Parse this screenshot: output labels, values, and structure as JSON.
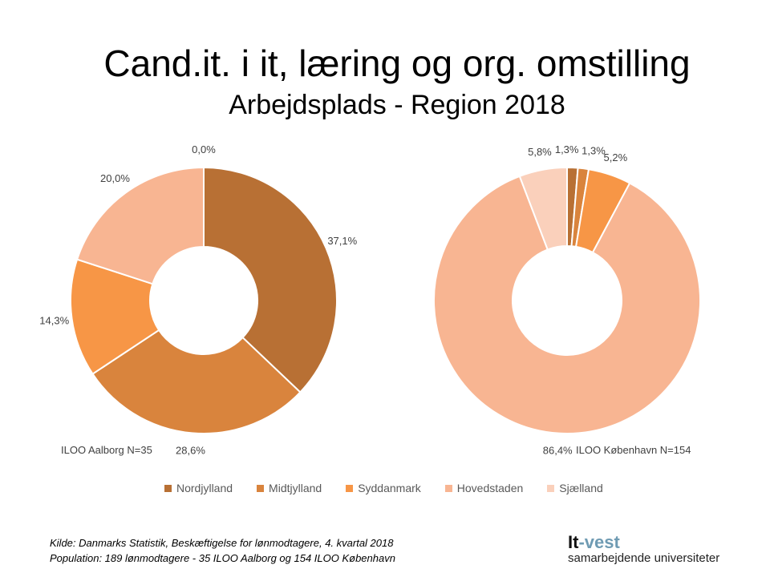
{
  "header": {
    "title": "Cand.it. i it, læring og org. omstilling",
    "subtitle": "Arbejdsplads - Region 2018"
  },
  "chart_data": [
    {
      "type": "pie",
      "donut": true,
      "name": "ILOO Aalborg N=35",
      "categories": [
        "Nordjylland",
        "Midtjylland",
        "Syddanmark",
        "Hovedstaden",
        "Sjælland"
      ],
      "values": [
        37.1,
        28.6,
        14.3,
        20.0,
        0.0
      ],
      "labels": [
        "37,1%",
        "28,6%",
        "14,3%",
        "20,0%",
        "0,0%"
      ]
    },
    {
      "type": "pie",
      "donut": true,
      "name": "ILOO København N=154",
      "categories": [
        "Nordjylland",
        "Midtjylland",
        "Syddanmark",
        "Hovedstaden",
        "Sjælland"
      ],
      "values": [
        1.3,
        1.3,
        5.2,
        86.4,
        5.8
      ],
      "labels": [
        "1,3%",
        "1,3%",
        "5,2%",
        "86,4%",
        "5,8%"
      ]
    }
  ],
  "legend": {
    "placement": "bottom",
    "items": [
      {
        "label": "Nordjylland",
        "color": "#B87034"
      },
      {
        "label": "Midtjylland",
        "color": "#D9843D"
      },
      {
        "label": "Syddanmark",
        "color": "#F79646"
      },
      {
        "label": "Hovedstaden",
        "color": "#F8B592"
      },
      {
        "label": "Sjælland",
        "color": "#FAD0BB"
      }
    ]
  },
  "footer": {
    "source_line1": "Kilde: Danmarks Statistik, Beskæftigelse for lønmodtagere, 4. kvartal 2018",
    "source_line2": "Population: 189 lønmodtagere - 35 ILOO Aalborg og 154 ILOO København",
    "logo_main_1": "It",
    "logo_main_2": "-vest",
    "logo_sub": "samarbejdende universiteter"
  }
}
